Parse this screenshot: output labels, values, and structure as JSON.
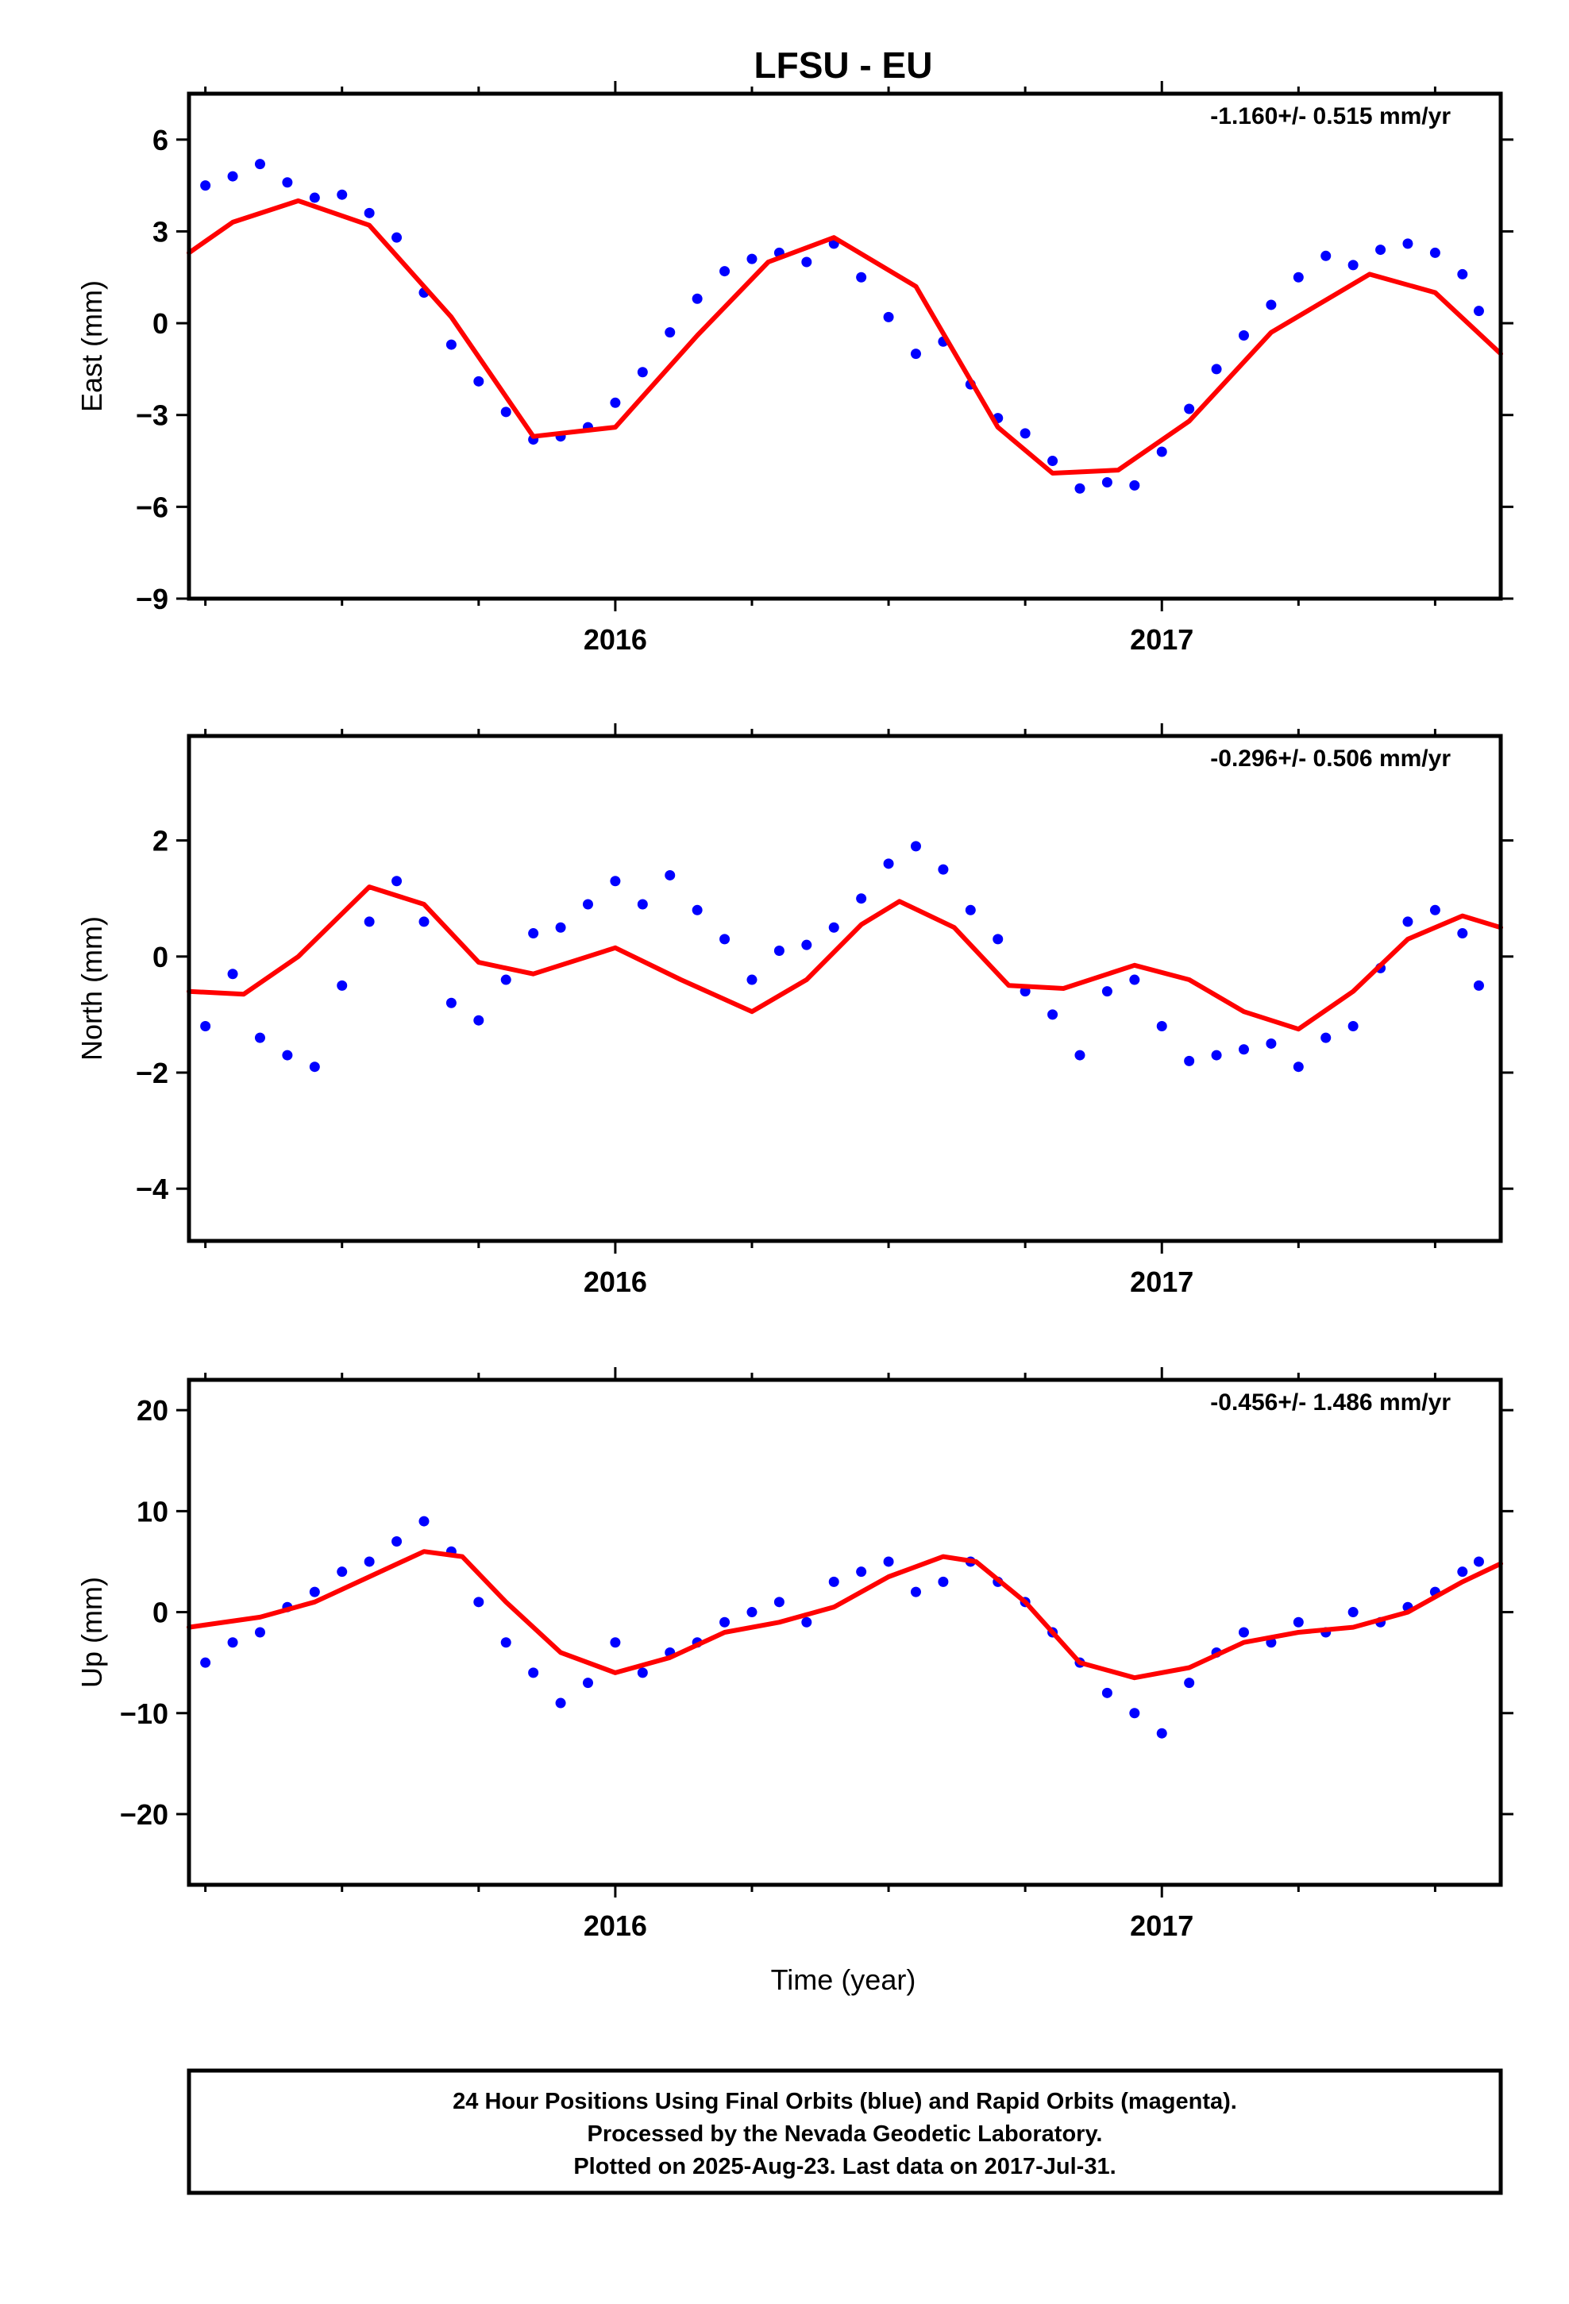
{
  "title": "LFSU - EU",
  "xlabel": "Time (year)",
  "footer": [
    "24 Hour Positions Using Final Orbits (blue) and Rapid Orbits (magenta).",
    "Processed by the Nevada Geodetic Laboratory.",
    "Plotted on 2025-Aug-23. Last data on 2017-Jul-31."
  ],
  "colors": {
    "points": "#0000ff",
    "fit": "#ff0000",
    "axes": "#000000"
  },
  "chart_data": [
    {
      "type": "scatter",
      "ylabel": "East (mm)",
      "rate": "-1.160+/- 0.515 mm/yr",
      "xlim": [
        2015.22,
        2017.62
      ],
      "ylim": [
        -9,
        7.5
      ],
      "yticks": [
        6,
        3,
        0,
        -3,
        -6,
        -9
      ],
      "ytick_labels": [
        "6",
        "3",
        "0",
        "−3",
        "−6",
        "−9"
      ],
      "xticks": [
        2016,
        2017
      ],
      "xtick_labels": [
        "2016",
        "2017"
      ],
      "series": [
        {
          "kind": "points",
          "x": [
            2015.25,
            2015.3,
            2015.35,
            2015.4,
            2015.45,
            2015.5,
            2015.55,
            2015.6,
            2015.65,
            2015.7,
            2015.75,
            2015.8,
            2015.85,
            2015.9,
            2015.95,
            2016.0,
            2016.05,
            2016.1,
            2016.15,
            2016.2,
            2016.25,
            2016.3,
            2016.35,
            2016.4,
            2016.45,
            2016.5,
            2016.55,
            2016.6,
            2016.65,
            2016.7,
            2016.75,
            2016.8,
            2016.85,
            2016.9,
            2016.95,
            2017.0,
            2017.05,
            2017.1,
            2017.15,
            2017.2,
            2017.25,
            2017.3,
            2017.35,
            2017.4,
            2017.45,
            2017.5,
            2017.55,
            2017.58
          ],
          "y": [
            4.5,
            4.8,
            5.2,
            4.6,
            4.1,
            4.2,
            3.6,
            2.8,
            1.0,
            -0.7,
            -1.9,
            -2.9,
            -3.8,
            -3.7,
            -3.4,
            -2.6,
            -1.6,
            -0.3,
            0.8,
            1.7,
            2.1,
            2.3,
            2.0,
            2.6,
            1.5,
            0.2,
            -1.0,
            -0.6,
            -2.0,
            -3.1,
            -3.6,
            -4.5,
            -5.4,
            -5.2,
            -5.3,
            -4.2,
            -2.8,
            -1.5,
            -0.4,
            0.6,
            1.5,
            2.2,
            1.9,
            2.4,
            2.6,
            2.3,
            1.6,
            0.4
          ]
        },
        {
          "kind": "fit",
          "x": [
            2015.22,
            2015.3,
            2015.42,
            2015.55,
            2015.7,
            2015.85,
            2016.0,
            2016.15,
            2016.28,
            2016.4,
            2016.55,
            2016.7,
            2016.8,
            2016.92,
            2017.05,
            2017.2,
            2017.38,
            2017.5,
            2017.62
          ],
          "y": [
            2.3,
            3.3,
            4.0,
            3.2,
            0.2,
            -3.7,
            -3.4,
            -0.4,
            2.0,
            2.8,
            1.2,
            -3.4,
            -4.9,
            -4.8,
            -3.2,
            -0.3,
            1.6,
            1.0,
            -1.0
          ]
        }
      ]
    },
    {
      "type": "scatter",
      "ylabel": "North (mm)",
      "rate": "-0.296+/- 0.506 mm/yr",
      "xlim": [
        2015.22,
        2017.62
      ],
      "ylim": [
        -4.9,
        3.8
      ],
      "yticks": [
        2,
        0,
        -2,
        -4
      ],
      "ytick_labels": [
        "2",
        "0",
        "−2",
        "−4"
      ],
      "xticks": [
        2016,
        2017
      ],
      "xtick_labels": [
        "2016",
        "2017"
      ],
      "series": [
        {
          "kind": "points",
          "x": [
            2015.25,
            2015.3,
            2015.35,
            2015.4,
            2015.45,
            2015.5,
            2015.55,
            2015.6,
            2015.65,
            2015.7,
            2015.75,
            2015.8,
            2015.85,
            2015.9,
            2015.95,
            2016.0,
            2016.05,
            2016.1,
            2016.15,
            2016.2,
            2016.25,
            2016.3,
            2016.35,
            2016.4,
            2016.45,
            2016.5,
            2016.55,
            2016.6,
            2016.65,
            2016.7,
            2016.75,
            2016.8,
            2016.85,
            2016.9,
            2016.95,
            2017.0,
            2017.05,
            2017.1,
            2017.15,
            2017.2,
            2017.25,
            2017.3,
            2017.35,
            2017.4,
            2017.45,
            2017.5,
            2017.55,
            2017.58
          ],
          "y": [
            -1.2,
            -0.3,
            -1.4,
            -1.7,
            -1.9,
            -0.5,
            0.6,
            1.3,
            0.6,
            -0.8,
            -1.1,
            -0.4,
            0.4,
            0.5,
            0.9,
            1.3,
            0.9,
            1.4,
            0.8,
            0.3,
            -0.4,
            0.1,
            0.2,
            0.5,
            1.0,
            1.6,
            1.9,
            1.5,
            0.8,
            0.3,
            -0.6,
            -1.0,
            -1.7,
            -0.6,
            -0.4,
            -1.2,
            -1.8,
            -1.7,
            -1.6,
            -1.5,
            -1.9,
            -1.4,
            -1.2,
            -0.2,
            0.6,
            0.8,
            0.4,
            -0.5
          ]
        },
        {
          "kind": "fit",
          "x": [
            2015.22,
            2015.32,
            2015.42,
            2015.55,
            2015.65,
            2015.75,
            2015.85,
            2016.0,
            2016.12,
            2016.25,
            2016.35,
            2016.45,
            2016.52,
            2016.62,
            2016.72,
            2016.82,
            2016.95,
            2017.05,
            2017.15,
            2017.25,
            2017.35,
            2017.45,
            2017.55,
            2017.62
          ],
          "y": [
            -0.6,
            -0.65,
            0.0,
            1.2,
            0.9,
            -0.1,
            -0.3,
            0.15,
            -0.4,
            -0.95,
            -0.4,
            0.55,
            0.95,
            0.5,
            -0.5,
            -0.55,
            -0.15,
            -0.4,
            -0.95,
            -1.25,
            -0.6,
            0.3,
            0.7,
            0.5
          ]
        }
      ]
    },
    {
      "type": "scatter",
      "ylabel": "Up (mm)",
      "rate": "-0.456+/- 1.486 mm/yr",
      "xlim": [
        2015.22,
        2017.62
      ],
      "ylim": [
        -27,
        23
      ],
      "yticks": [
        20,
        10,
        0,
        -10,
        -20
      ],
      "ytick_labels": [
        "20",
        "10",
        "0",
        "−10",
        "−20"
      ],
      "xticks": [
        2016,
        2017
      ],
      "xtick_labels": [
        "2016",
        "2017"
      ],
      "series": [
        {
          "kind": "points",
          "x": [
            2015.25,
            2015.3,
            2015.35,
            2015.4,
            2015.45,
            2015.5,
            2015.55,
            2015.6,
            2015.65,
            2015.7,
            2015.75,
            2015.8,
            2015.85,
            2015.9,
            2015.95,
            2016.0,
            2016.05,
            2016.1,
            2016.15,
            2016.2,
            2016.25,
            2016.3,
            2016.35,
            2016.4,
            2016.45,
            2016.5,
            2016.55,
            2016.6,
            2016.65,
            2016.7,
            2016.75,
            2016.8,
            2016.85,
            2016.9,
            2016.95,
            2017.0,
            2017.05,
            2017.1,
            2017.15,
            2017.2,
            2017.25,
            2017.3,
            2017.35,
            2017.4,
            2017.45,
            2017.5,
            2017.55,
            2017.58
          ],
          "y": [
            -5.0,
            -3.0,
            -2.0,
            0.5,
            2.0,
            4.0,
            5.0,
            7.0,
            9.0,
            6.0,
            1.0,
            -3.0,
            -6.0,
            -9.0,
            -7.0,
            -3.0,
            -6.0,
            -4.0,
            -3.0,
            -1.0,
            0.0,
            1.0,
            -1.0,
            3.0,
            4.0,
            5.0,
            2.0,
            3.0,
            5.0,
            3.0,
            1.0,
            -2.0,
            -5.0,
            -8.0,
            -10.0,
            -12.0,
            -7.0,
            -4.0,
            -2.0,
            -3.0,
            -1.0,
            -2.0,
            0.0,
            -1.0,
            0.5,
            2.0,
            4.0,
            5.0
          ]
        },
        {
          "kind": "fit",
          "x": [
            2015.22,
            2015.35,
            2015.45,
            2015.55,
            2015.65,
            2015.72,
            2015.8,
            2015.9,
            2016.0,
            2016.1,
            2016.2,
            2016.3,
            2016.4,
            2016.5,
            2016.6,
            2016.66,
            2016.75,
            2016.85,
            2016.95,
            2017.05,
            2017.15,
            2017.25,
            2017.35,
            2017.45,
            2017.55,
            2017.62
          ],
          "y": [
            -1.5,
            -0.5,
            1.0,
            3.5,
            6.0,
            5.5,
            1.0,
            -4.0,
            -6.0,
            -4.5,
            -2.0,
            -1.0,
            0.5,
            3.5,
            5.5,
            5.0,
            1.0,
            -5.0,
            -6.5,
            -5.5,
            -3.0,
            -2.0,
            -1.5,
            0.0,
            3.0,
            4.8
          ]
        }
      ]
    }
  ]
}
